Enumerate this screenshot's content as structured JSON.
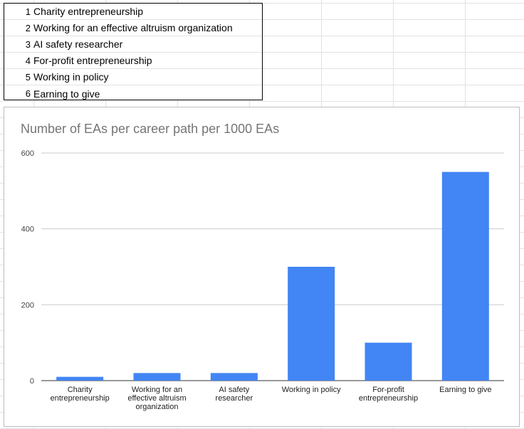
{
  "table": {
    "rows": [
      {
        "index": "1",
        "label": "Charity entrepreneurship"
      },
      {
        "index": "2",
        "label": "Working for an effective altruism organization"
      },
      {
        "index": "3",
        "label": "AI safety researcher"
      },
      {
        "index": "4",
        "label": "For-profit entrepreneurship"
      },
      {
        "index": "5",
        "label": "Working in policy"
      },
      {
        "index": "6",
        "label": "Earning to give"
      }
    ]
  },
  "chart_data": {
    "type": "bar",
    "title": "Number of EAs per career path per 1000 EAs",
    "xlabel": "",
    "ylabel": "",
    "categories": [
      [
        "Charity",
        "entrepreneurship"
      ],
      [
        "Working for an",
        "effective altruism",
        "organization"
      ],
      [
        "AI safety",
        "researcher"
      ],
      [
        "Working in policy"
      ],
      [
        "For-profit",
        "entrepreneurship"
      ],
      [
        "Earning to give"
      ]
    ],
    "values": [
      10,
      20,
      20,
      300,
      100,
      550
    ],
    "ylim": [
      0,
      600
    ],
    "yticks": [
      "0",
      "200",
      "400",
      "600"
    ],
    "grid": true,
    "bar_color": "#4285f4"
  }
}
